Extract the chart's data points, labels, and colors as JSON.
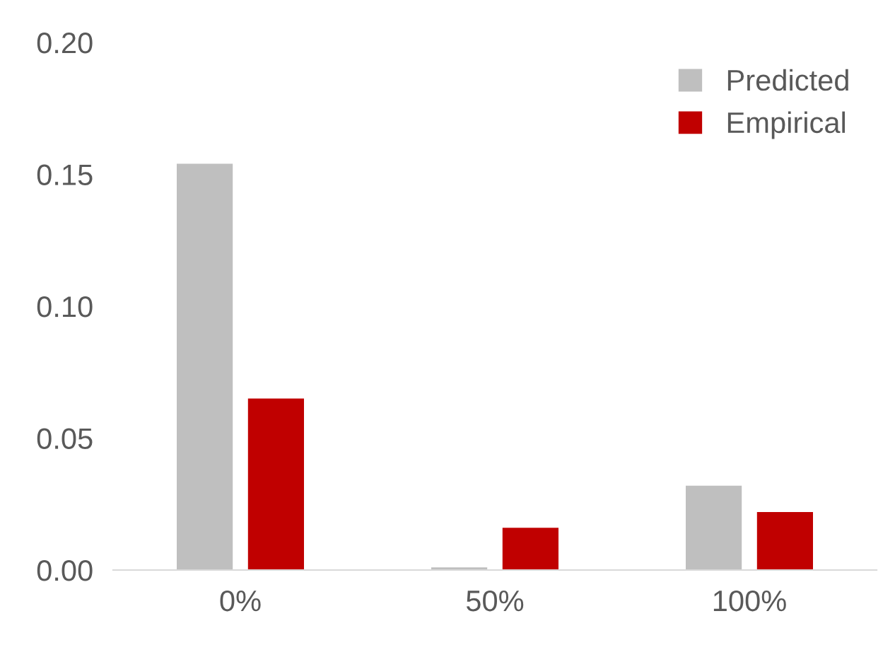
{
  "chart_data": {
    "type": "bar",
    "categories": [
      "0%",
      "50%",
      "100%"
    ],
    "series": [
      {
        "name": "Predicted",
        "color": "#bfbfbf",
        "values": [
          0.154,
          0.001,
          0.032
        ]
      },
      {
        "name": "Empirical",
        "color": "#c00000",
        "values": [
          0.065,
          0.016,
          0.022
        ]
      }
    ],
    "ylim": [
      0,
      0.2
    ],
    "yticks": [
      {
        "value": 0,
        "label": "0.00"
      },
      {
        "value": 0.05,
        "label": "0.05"
      },
      {
        "value": 0.1,
        "label": "0.10"
      },
      {
        "value": 0.15,
        "label": "0.15"
      },
      {
        "value": 0.2,
        "label": "0.20"
      }
    ],
    "grid": false,
    "legend": "top right"
  }
}
